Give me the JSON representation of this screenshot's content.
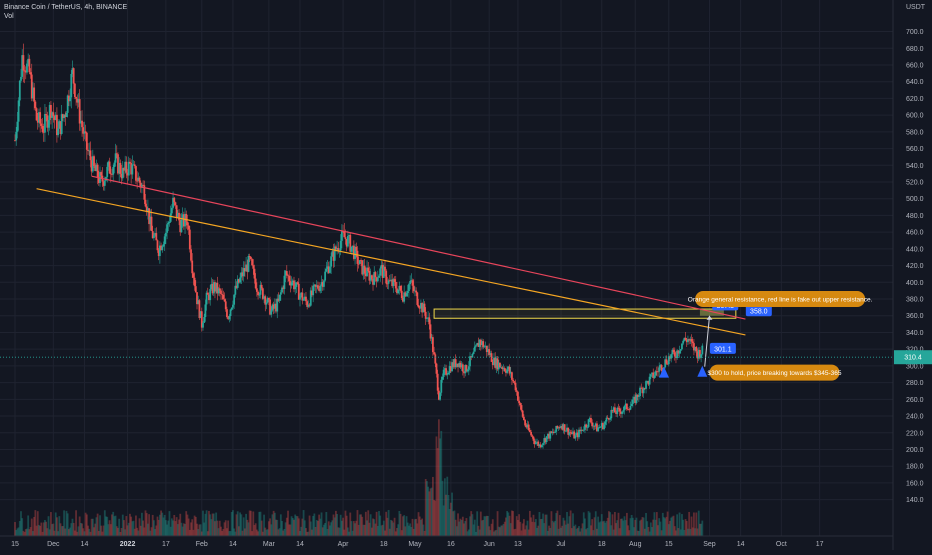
{
  "header": {
    "symbol_line": "Binance Coin / TetherUS, 4h, BINANCE",
    "volume_label": "Vol"
  },
  "colors": {
    "background": "#131722",
    "grid": "#1f2330",
    "up": "#26a69a",
    "down": "#ef5350",
    "orange_line": "#f5a623",
    "red_line": "#e8455b",
    "zone": "#f0d84a",
    "callout": "#d68910",
    "tag": "#2962ff",
    "price_tag": "#26a69a",
    "arrow": "#2962ff"
  },
  "chart_data": {
    "type": "candlestick",
    "price_unit": "USDT",
    "y_ticks": [
      700,
      680,
      660,
      640,
      620,
      600,
      580,
      560,
      540,
      520,
      500,
      480,
      460,
      440,
      420,
      400,
      380,
      360,
      340,
      320,
      300,
      280,
      260,
      240,
      220,
      200,
      180,
      160,
      140
    ],
    "y_range": [
      130,
      715
    ],
    "x_range": [
      0,
      309
    ],
    "x_ticks": [
      {
        "label": "15",
        "day": 0
      },
      {
        "label": "Dec",
        "day": 16
      },
      {
        "label": "14",
        "day": 29
      },
      {
        "label": "2022",
        "day": 47
      },
      {
        "label": "17",
        "day": 63
      },
      {
        "label": "Feb",
        "day": 78
      },
      {
        "label": "14",
        "day": 91
      },
      {
        "label": "Mar",
        "day": 106
      },
      {
        "label": "14",
        "day": 119
      },
      {
        "label": "Apr",
        "day": 137
      },
      {
        "label": "18",
        "day": 154
      },
      {
        "label": "May",
        "day": 167
      },
      {
        "label": "16",
        "day": 182
      },
      {
        "label": "Jun",
        "day": 198
      },
      {
        "label": "13",
        "day": 210
      },
      {
        "label": "Jul",
        "day": 228
      },
      {
        "label": "18",
        "day": 245
      },
      {
        "label": "Aug",
        "day": 259
      },
      {
        "label": "15",
        "day": 273
      },
      {
        "label": "Sep",
        "day": 290
      },
      {
        "label": "14",
        "day": 303
      },
      {
        "label": "Oct",
        "day": 320
      },
      {
        "label": "17",
        "day": 336
      }
    ],
    "close_path": [
      [
        0,
        570
      ],
      [
        3,
        670
      ],
      [
        6,
        650
      ],
      [
        9,
        595
      ],
      [
        12,
        585
      ],
      [
        15,
        610
      ],
      [
        18,
        580
      ],
      [
        21,
        605
      ],
      [
        24,
        650
      ],
      [
        27,
        600
      ],
      [
        30,
        560
      ],
      [
        33,
        535
      ],
      [
        36,
        520
      ],
      [
        39,
        535
      ],
      [
        42,
        545
      ],
      [
        45,
        530
      ],
      [
        48,
        540
      ],
      [
        51,
        525
      ],
      [
        54,
        510
      ],
      [
        57,
        460
      ],
      [
        60,
        440
      ],
      [
        63,
        460
      ],
      [
        66,
        495
      ],
      [
        69,
        470
      ],
      [
        72,
        475
      ],
      [
        74,
        420
      ],
      [
        76,
        380
      ],
      [
        78,
        350
      ],
      [
        80,
        380
      ],
      [
        83,
        395
      ],
      [
        86,
        385
      ],
      [
        89,
        360
      ],
      [
        92,
        390
      ],
      [
        95,
        410
      ],
      [
        98,
        425
      ],
      [
        101,
        395
      ],
      [
        104,
        385
      ],
      [
        107,
        365
      ],
      [
        110,
        375
      ],
      [
        113,
        410
      ],
      [
        116,
        400
      ],
      [
        119,
        385
      ],
      [
        122,
        375
      ],
      [
        125,
        390
      ],
      [
        128,
        400
      ],
      [
        131,
        420
      ],
      [
        134,
        440
      ],
      [
        137,
        455
      ],
      [
        139,
        450
      ],
      [
        141,
        440
      ],
      [
        144,
        420
      ],
      [
        147,
        410
      ],
      [
        150,
        405
      ],
      [
        153,
        415
      ],
      [
        156,
        400
      ],
      [
        159,
        395
      ],
      [
        162,
        385
      ],
      [
        165,
        400
      ],
      [
        168,
        380
      ],
      [
        171,
        365
      ],
      [
        173,
        350
      ],
      [
        175,
        310
      ],
      [
        177,
        265
      ],
      [
        179,
        290
      ],
      [
        182,
        300
      ],
      [
        185,
        305
      ],
      [
        188,
        295
      ],
      [
        191,
        310
      ],
      [
        194,
        330
      ],
      [
        197,
        320
      ],
      [
        200,
        305
      ],
      [
        203,
        300
      ],
      [
        206,
        295
      ],
      [
        209,
        275
      ],
      [
        211,
        250
      ],
      [
        213,
        230
      ],
      [
        215,
        220
      ],
      [
        217,
        210
      ],
      [
        219,
        205
      ],
      [
        222,
        215
      ],
      [
        225,
        220
      ],
      [
        228,
        230
      ],
      [
        231,
        222
      ],
      [
        234,
        215
      ],
      [
        237,
        225
      ],
      [
        240,
        235
      ],
      [
        243,
        225
      ],
      [
        246,
        230
      ],
      [
        249,
        245
      ],
      [
        252,
        245
      ],
      [
        255,
        250
      ],
      [
        258,
        255
      ],
      [
        261,
        270
      ],
      [
        264,
        280
      ],
      [
        267,
        290
      ],
      [
        270,
        300
      ],
      [
        273,
        310
      ],
      [
        276,
        315
      ],
      [
        279,
        330
      ],
      [
        281,
        332
      ],
      [
        283,
        323
      ],
      [
        285,
        315
      ],
      [
        287,
        318
      ]
    ],
    "vol_spike_day": 177,
    "annotations": {
      "trendlines": [
        {
          "name": "orange-support-line",
          "from": [
            9,
            512
          ],
          "to": [
            305,
            337
          ]
        },
        {
          "name": "red-resistance-line",
          "from": [
            32,
            527
          ],
          "to": [
            305,
            356
          ]
        }
      ],
      "zone": {
        "from": [
          175,
          357
        ],
        "to": [
          301,
          368
        ]
      },
      "zone_highlight": {
        "from": [
          286,
          360
        ],
        "to": [
          296,
          368
        ]
      },
      "projection": {
        "from": [
          288,
          299
        ],
        "to": [
          290,
          360
        ]
      },
      "price_tags": [
        {
          "label": "367.3",
          "at": [
            292,
            370
          ]
        },
        {
          "label": "358.0",
          "at": [
            306,
            363
          ]
        },
        {
          "label": "301.1",
          "at": [
            291,
            318
          ]
        }
      ],
      "arrows": [
        [
          271,
          292
        ],
        [
          287,
          293
        ]
      ],
      "callouts": [
        {
          "text": "Orange general resistance, red line is fake out upper resistance.",
          "at": [
            284,
            380
          ],
          "width": 170
        },
        {
          "text": "$300 to hold, price breaking towards $345-365",
          "at": [
            290,
            292
          ],
          "width": 130
        }
      ],
      "current_price": {
        "label": "310.4",
        "value": 310.4
      },
      "axis_unit_label": "USDT"
    }
  }
}
